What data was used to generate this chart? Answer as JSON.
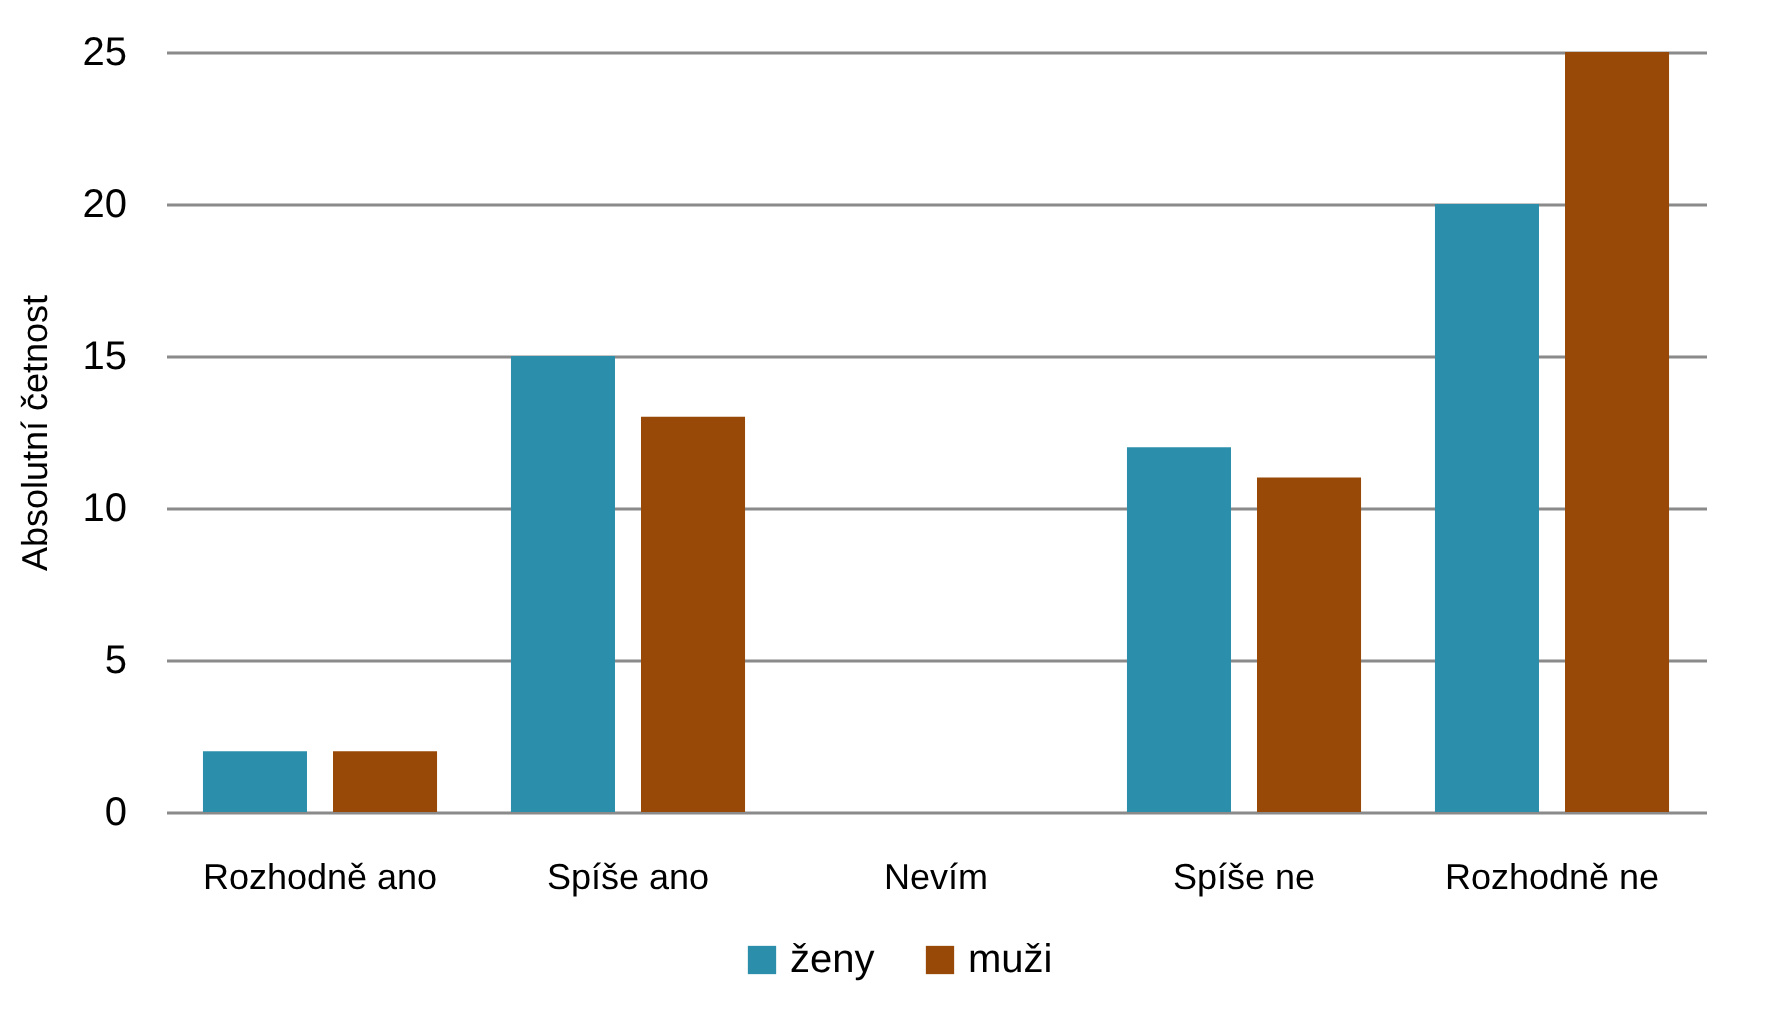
{
  "chart_data": {
    "type": "bar",
    "ylabel": "Absolutní četnost",
    "categories": [
      "Rozhodně ano",
      "Spíše ano",
      "Nevím",
      "Spíše ne",
      "Rozhodně ne"
    ],
    "series": [
      {
        "name": "ženy",
        "color": "#2b8fab",
        "values": [
          2,
          15,
          0,
          12,
          20
        ]
      },
      {
        "name": "muži",
        "color": "#984807",
        "values": [
          2,
          13,
          0,
          11,
          25
        ]
      }
    ],
    "ylim": [
      0,
      25
    ],
    "yticks": [
      0,
      5,
      10,
      15,
      20,
      25
    ],
    "grid": "y",
    "legend": "bottom"
  }
}
